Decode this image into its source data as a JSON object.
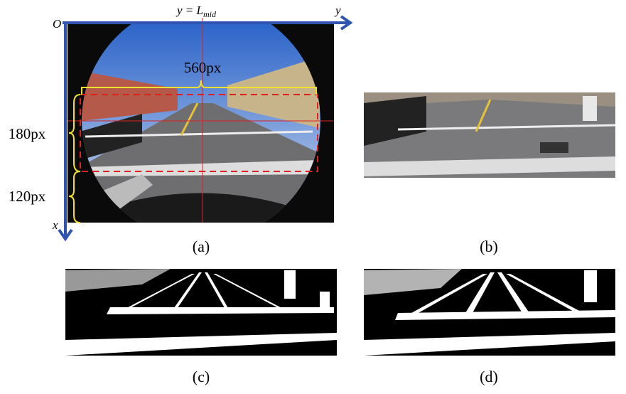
{
  "figure": {
    "panel_a": {
      "origin": "O",
      "axis_top": {
        "prefix": "y = L",
        "subscript": "mid"
      },
      "axis_y": "y",
      "axis_x": "x",
      "width_label": "560px",
      "height_label_roi": "180px",
      "height_label_bottom": "120px",
      "caption": "(a)"
    },
    "panel_b": {
      "caption": "(b)"
    },
    "panel_c": {
      "caption": "(c)"
    },
    "panel_d": {
      "caption": "(d)"
    }
  }
}
